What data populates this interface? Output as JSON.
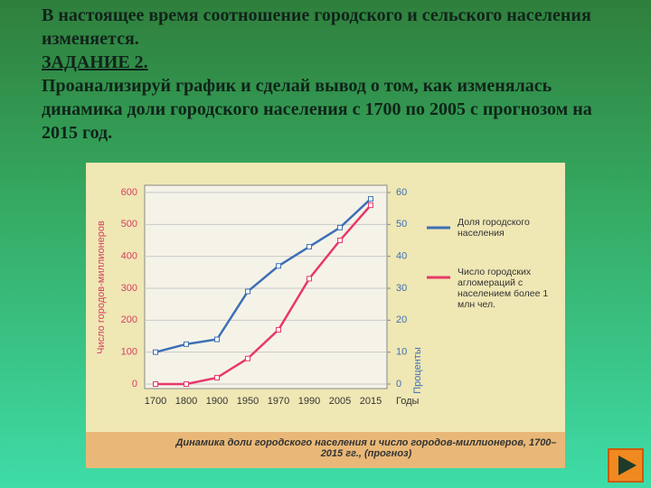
{
  "slide": {
    "intro": "В настоящее время  соотношение городского и сельского населения изменяется.",
    "task_title": "ЗАДАНИЕ 2.",
    "task_text": "Проанализируй график и сделай вывод о том, как изменялась динамика доли городского населения с 1700 по 2005 с прогнозом на 2015 год."
  },
  "chart_data": {
    "type": "line",
    "caption": "Динамика доли городского населения и число городов-миллионеров, 1700–2015 гг., (прогноз)",
    "y_label": "Число городов-миллионеров",
    "y2_label": "Проценты",
    "x_label": "Годы",
    "categories": [
      "1700",
      "1800",
      "1900",
      "1950",
      "1970",
      "1990",
      "2005",
      "2015"
    ],
    "ylim": [
      0,
      600
    ],
    "yticks": [
      0,
      100,
      200,
      300,
      400,
      500,
      600
    ],
    "y2lim": [
      0,
      60
    ],
    "y2ticks": [
      0,
      10,
      20,
      30,
      40,
      50,
      60
    ],
    "grid": true,
    "series": [
      {
        "name": "Доля городского населения",
        "color": "#3d6fb6",
        "axis": "y2",
        "values": [
          10,
          12.5,
          14,
          29,
          37,
          43,
          49,
          58
        ]
      },
      {
        "name": "Число городских агломераций с населением более 1 млн чел.",
        "color": "#e8386a",
        "values": [
          0,
          0,
          20,
          80,
          170,
          330,
          450,
          560
        ]
      }
    ]
  }
}
